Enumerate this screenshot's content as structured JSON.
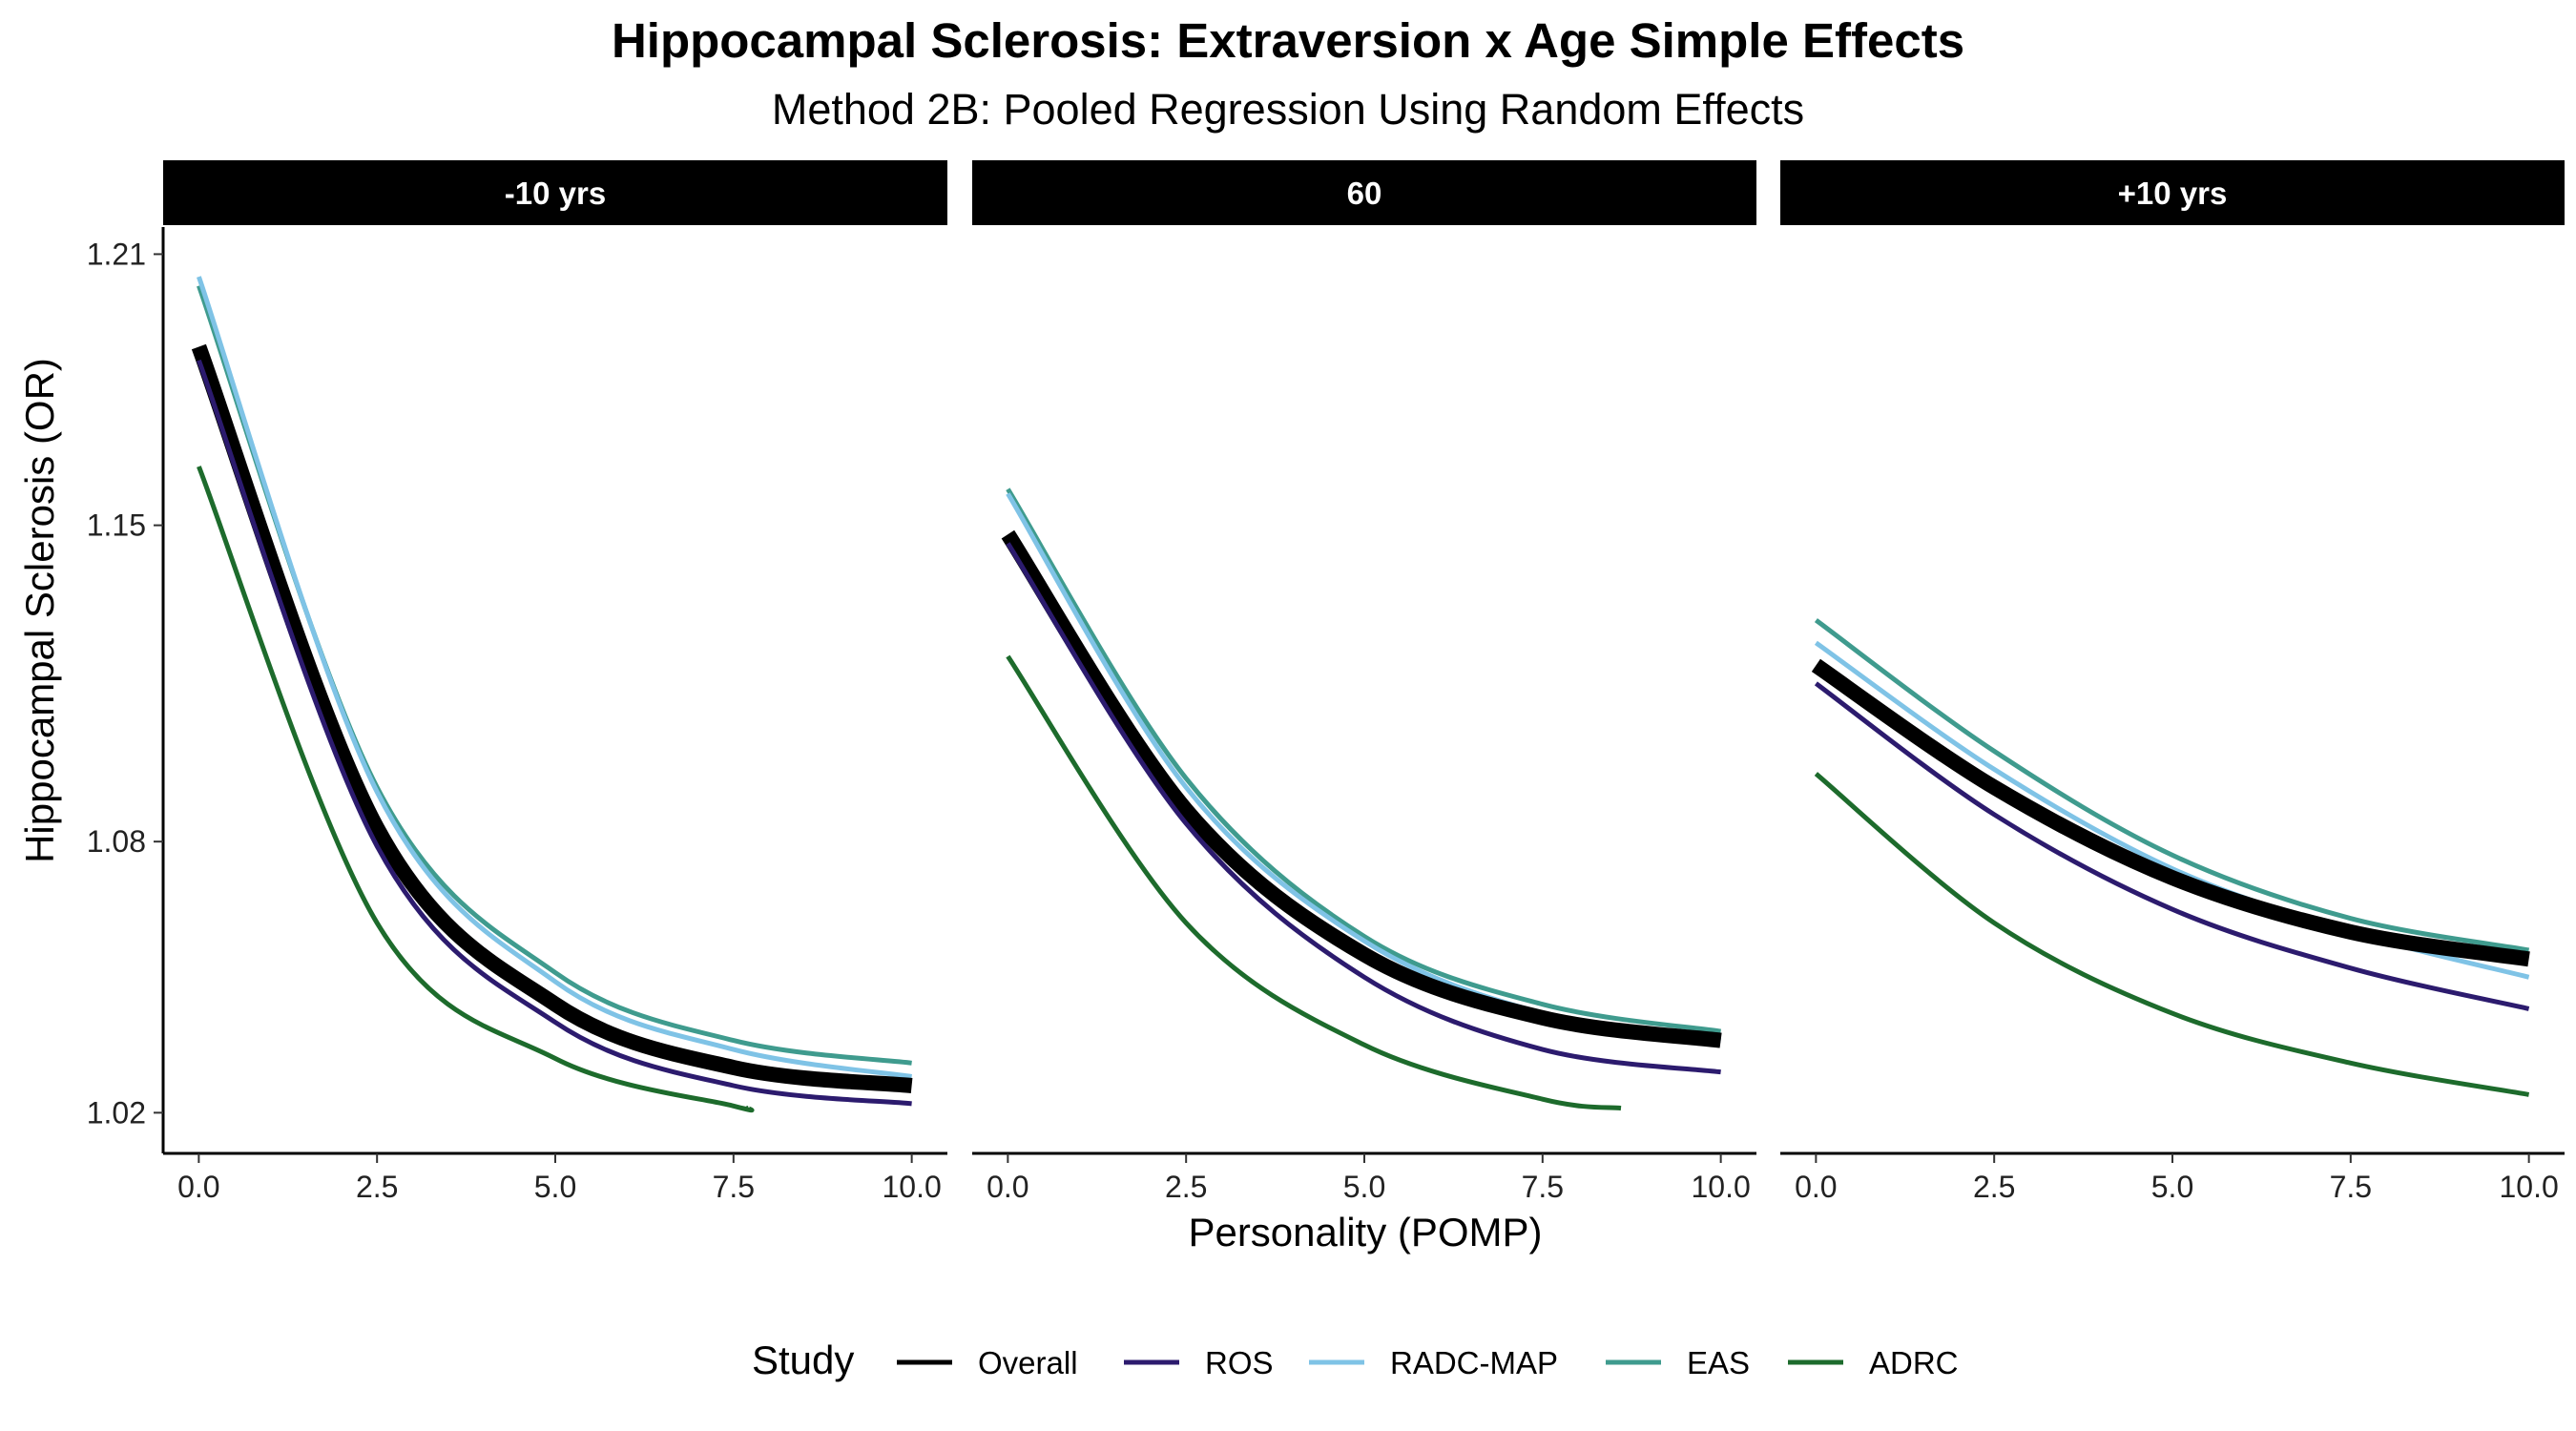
{
  "chart_data": {
    "type": "line",
    "title": "Hippocampal Sclerosis: Extraversion x Age Simple Effects",
    "subtitle": "Method 2B: Pooled Regression Using Random Effects",
    "xlabel": "Personality (POMP)",
    "ylabel": "Hippocampal Sclerosis (OR)",
    "xlim": [
      -0.5,
      10.5
    ],
    "ylim": [
      1.011,
      1.216
    ],
    "x_ticks": [
      0,
      2.5,
      5,
      7.5,
      10
    ],
    "x_tick_labels": [
      "0.0",
      "2.5",
      "5.0",
      "7.5",
      "10.0"
    ],
    "y_ticks": [
      1.02,
      1.08,
      1.15,
      1.21
    ],
    "y_tick_labels": [
      "1.02",
      "1.08",
      "1.15",
      "1.21"
    ],
    "grid": false,
    "legend": {
      "title": "Study",
      "position": "bottom",
      "entries": [
        {
          "name": "Overall",
          "color": "#000000"
        },
        {
          "name": "ROS",
          "color": "#2c1b6e"
        },
        {
          "name": "RADC-MAP",
          "color": "#7fc3e6"
        },
        {
          "name": "EAS",
          "color": "#3f9b8e"
        },
        {
          "name": "ADRC",
          "color": "#1d6b2c"
        }
      ]
    },
    "panels": [
      {
        "label": "-10 yrs",
        "series": [
          {
            "name": "Overall",
            "color": "#000000",
            "emphasis": true,
            "x": [
              0,
              2.5,
              5,
              7.5,
              10
            ],
            "y": [
              1.1895,
              1.083,
              1.044,
              1.03,
              1.026
            ]
          },
          {
            "name": "ROS",
            "color": "#2c1b6e",
            "x": [
              0,
              2.5,
              5,
              7.5,
              10
            ],
            "y": [
              1.1865,
              1.079,
              1.04,
              1.026,
              1.022
            ]
          },
          {
            "name": "RADC-MAP",
            "color": "#7fc3e6",
            "x": [
              0,
              2.5,
              5,
              7.5,
              10
            ],
            "y": [
              1.205,
              1.091,
              1.049,
              1.034,
              1.028
            ]
          },
          {
            "name": "EAS",
            "color": "#3f9b8e",
            "x": [
              0,
              2.5,
              5,
              7.5,
              10
            ],
            "y": [
              1.203,
              1.092,
              1.051,
              1.036,
              1.031
            ]
          },
          {
            "name": "ADRC",
            "color": "#1d6b2c",
            "x": [
              0,
              2.5,
              5,
              7.5,
              7.7
            ],
            "y": [
              1.163,
              1.062,
              1.032,
              1.0215,
              1.021
            ]
          }
        ]
      },
      {
        "label": "60",
        "series": [
          {
            "name": "Overall",
            "color": "#000000",
            "emphasis": true,
            "x": [
              0,
              2.5,
              5,
              7.5,
              10
            ],
            "y": [
              1.148,
              1.087,
              1.055,
              1.041,
              1.036
            ]
          },
          {
            "name": "ROS",
            "color": "#2c1b6e",
            "x": [
              0,
              2.5,
              5,
              7.5,
              10
            ],
            "y": [
              1.146,
              1.084,
              1.05,
              1.034,
              1.029
            ]
          },
          {
            "name": "RADC-MAP",
            "color": "#7fc3e6",
            "x": [
              0,
              2.5,
              5,
              7.5,
              10
            ],
            "y": [
              1.157,
              1.092,
              1.058,
              1.042,
              1.036
            ]
          },
          {
            "name": "EAS",
            "color": "#3f9b8e",
            "x": [
              0,
              2.5,
              5,
              7.5,
              10
            ],
            "y": [
              1.158,
              1.094,
              1.059,
              1.044,
              1.038
            ]
          },
          {
            "name": "ADRC",
            "color": "#1d6b2c",
            "x": [
              0,
              2.5,
              5,
              7.5,
              8.6
            ],
            "y": [
              1.121,
              1.062,
              1.035,
              1.023,
              1.021
            ]
          }
        ]
      },
      {
        "label": "+10 yrs",
        "series": [
          {
            "name": "Overall",
            "color": "#000000",
            "emphasis": true,
            "x": [
              0,
              2.5,
              5,
              7.5,
              10
            ],
            "y": [
              1.119,
              1.092,
              1.072,
              1.06,
              1.054
            ]
          },
          {
            "name": "ROS",
            "color": "#2c1b6e",
            "x": [
              0,
              2.5,
              5,
              7.5,
              10
            ],
            "y": [
              1.115,
              1.086,
              1.065,
              1.052,
              1.043
            ]
          },
          {
            "name": "RADC-MAP",
            "color": "#7fc3e6",
            "x": [
              0,
              2.5,
              5,
              7.5,
              10
            ],
            "y": [
              1.124,
              1.096,
              1.074,
              1.06,
              1.05
            ]
          },
          {
            "name": "EAS",
            "color": "#3f9b8e",
            "x": [
              0,
              2.5,
              5,
              7.5,
              10
            ],
            "y": [
              1.129,
              1.1,
              1.077,
              1.063,
              1.056
            ]
          },
          {
            "name": "ADRC",
            "color": "#1d6b2c",
            "x": [
              0,
              2.5,
              5,
              7.5,
              10
            ],
            "y": [
              1.095,
              1.062,
              1.042,
              1.031,
              1.024
            ]
          }
        ]
      }
    ]
  }
}
